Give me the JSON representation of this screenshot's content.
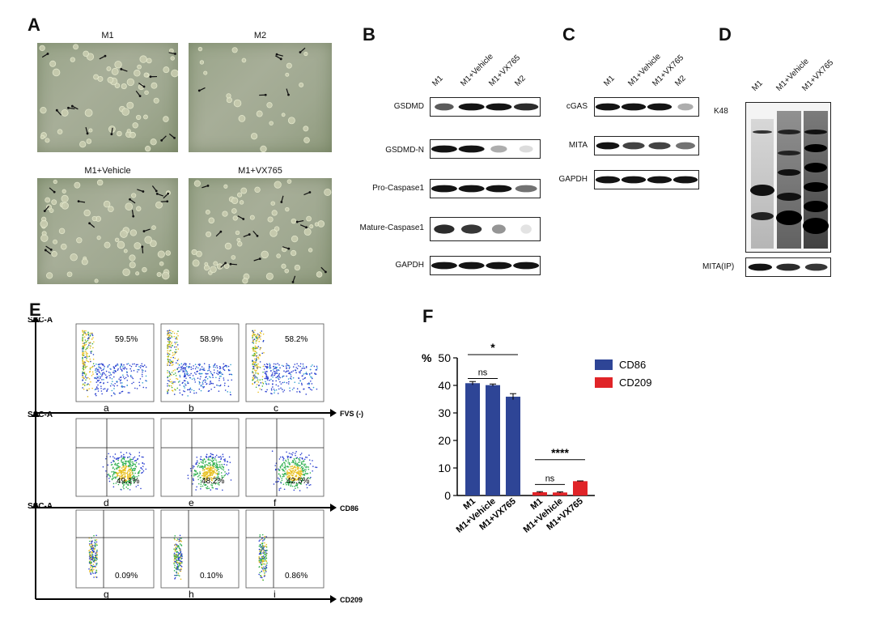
{
  "panels": {
    "A": {
      "letter": "A",
      "images": [
        "M1",
        "M2",
        "M1+Vehicle",
        "M1+VX765"
      ]
    },
    "B": {
      "letter": "B",
      "lanes": [
        "M1",
        "M1+Vehicle",
        "M1+VX765",
        "M2"
      ],
      "rows": [
        "GSDMD",
        "GSDMD-N",
        "Pro-Caspase1",
        "Mature-Caspase1",
        "GAPDH"
      ]
    },
    "C": {
      "letter": "C",
      "lanes": [
        "M1",
        "M1+Vehicle",
        "M1+VX765",
        "M2"
      ],
      "rows": [
        "cGAS",
        "MITA",
        "GAPDH"
      ]
    },
    "D": {
      "letter": "D",
      "lanes": [
        "M1",
        "M1+Vehicle",
        "M1+VX765"
      ],
      "blot_label": "K48",
      "ip_label": "MITA(IP)"
    },
    "E": {
      "letter": "E",
      "y_axis": "SSC-A",
      "row_axes": [
        "FVS (-)",
        "CD86",
        "CD209"
      ],
      "percents": [
        [
          "59.5%",
          "58.9%",
          "58.2%"
        ],
        [
          "49.1%",
          "48.2%",
          "42.5%"
        ],
        [
          "0.09%",
          "0.10%",
          "0.86%"
        ]
      ],
      "sub_letters": [
        [
          "a",
          "b",
          "c"
        ],
        [
          "d",
          "e",
          "f"
        ],
        [
          "g",
          "h",
          "i"
        ]
      ]
    },
    "F": {
      "letter": "F"
    }
  },
  "chart_data": {
    "type": "bar",
    "ylabel": "%",
    "ylim": [
      0,
      50
    ],
    "yticks": [
      0,
      10,
      20,
      30,
      40,
      50
    ],
    "categories": [
      "M1",
      "M1+Vehicle",
      "M1+VX765",
      "M1",
      "M1+Vehicle",
      "M1+VX765"
    ],
    "series": [
      {
        "name": "CD86",
        "color": "#2e4596",
        "values": [
          40.8,
          40.1,
          35.9,
          null,
          null,
          null
        ],
        "errors": [
          0.6,
          0.4,
          1.1,
          null,
          null,
          null
        ]
      },
      {
        "name": "CD209",
        "color": "#e02428",
        "values": [
          null,
          null,
          null,
          1.2,
          1.1,
          5.2
        ],
        "errors": [
          null,
          null,
          null,
          0.2,
          0.2,
          0.1
        ]
      }
    ],
    "annotations": [
      {
        "label": "*",
        "from": 0,
        "to": 2
      },
      {
        "label": "ns",
        "from": 0,
        "to": 1
      },
      {
        "label": "****",
        "from": 3,
        "to": 5
      },
      {
        "label": "ns",
        "from": 3,
        "to": 4
      }
    ],
    "legend": "right"
  }
}
